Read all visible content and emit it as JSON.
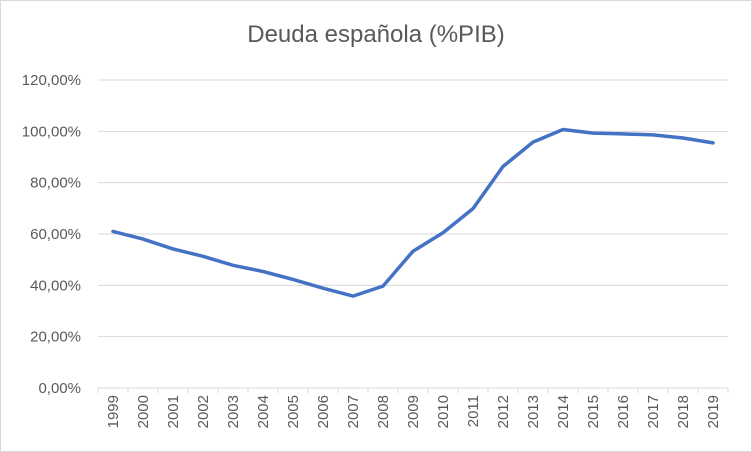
{
  "chart_data": {
    "type": "line",
    "title": "Deuda española (%PIB)",
    "xlabel": "",
    "ylabel": "",
    "x": [
      "1999",
      "2000",
      "2001",
      "2002",
      "2003",
      "2004",
      "2005",
      "2006",
      "2007",
      "2008",
      "2009",
      "2010",
      "2011",
      "2012",
      "2013",
      "2014",
      "2015",
      "2016",
      "2017",
      "2018",
      "2019"
    ],
    "series": [
      {
        "values": [
          61.0,
          58.0,
          54.2,
          51.3,
          47.8,
          45.4,
          42.3,
          38.9,
          35.8,
          39.7,
          53.3,
          60.5,
          69.9,
          86.3,
          95.8,
          100.7,
          99.3,
          99.0,
          98.6,
          97.4,
          95.5
        ]
      }
    ],
    "ylim": [
      0,
      120
    ],
    "y_ticks": [
      "0,00%",
      "20,00%",
      "40,00%",
      "60,00%",
      "80,00%",
      "100,00%",
      "120,00%"
    ],
    "y_tick_values": [
      0,
      20,
      40,
      60,
      80,
      100,
      120
    ],
    "grid": true,
    "legend": "none",
    "colors": {
      "line": "#4472C4",
      "grid": "#d9d9d9",
      "text": "#595959"
    }
  }
}
